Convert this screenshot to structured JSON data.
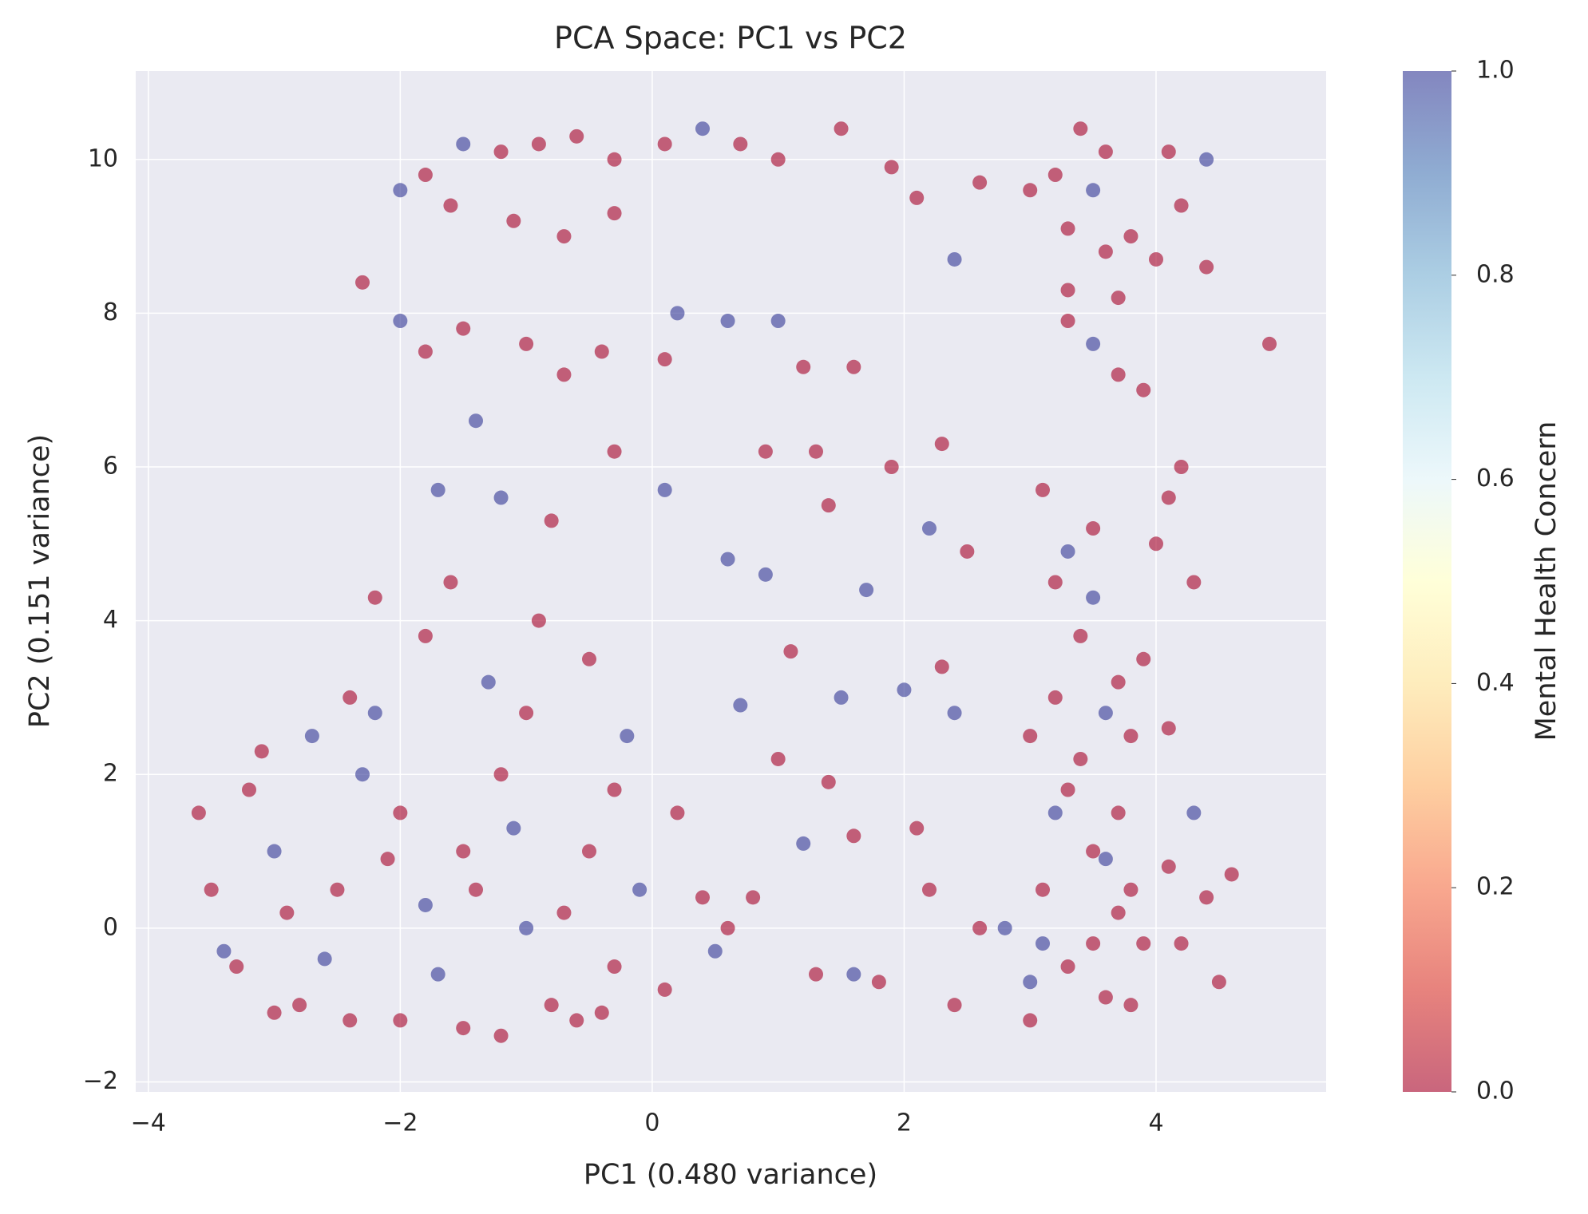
{
  "chart_data": {
    "type": "scatter",
    "title": "PCA Space: PC1 vs PC2",
    "x_label": "PC1 (0.480 variance)",
    "y_label": "PC2 (0.151 variance)",
    "colorbar_label": "Mental Health Concern",
    "xlim": [
      -4.1,
      5.35
    ],
    "ylim": [
      -2.13,
      11.15
    ],
    "xticks": [
      {
        "value": -4,
        "label": "−4"
      },
      {
        "value": -2,
        "label": "−2"
      },
      0,
      2,
      4
    ],
    "yticks": [
      {
        "value": -2,
        "label": "−2"
      },
      0,
      2,
      4,
      6,
      8,
      10
    ],
    "clim": [
      0,
      1
    ],
    "cticks": [
      {
        "value": 0,
        "label": "0.0"
      },
      0.2,
      0.4,
      0.6,
      0.8,
      {
        "value": 1,
        "label": "1.0"
      }
    ],
    "colormap": [
      "#a50026",
      "#d73027",
      "#f46d43",
      "#fdae61",
      "#fee090",
      "#ffffbf",
      "#e0f3f8",
      "#abd9e9",
      "#74add1",
      "#4575b4",
      "#313695"
    ],
    "alpha": 0.6,
    "grid": true,
    "x": [
      -3.6,
      -3.5,
      -3.3,
      -3.0,
      -2.8,
      -2.5,
      -2.3,
      -2.0,
      -2.0,
      -1.8,
      -1.5,
      -1.5,
      -1.2,
      -1.0,
      -0.8,
      -0.5,
      -0.3,
      -0.1,
      0.1,
      -2.7,
      -3.1,
      -2.4,
      -1.8,
      -1.3,
      -0.9,
      -0.5,
      -2.2,
      -1.6,
      -0.2,
      0.2,
      0.4,
      0.5,
      -3.4,
      -2.9,
      -2.6,
      -2.1,
      -1.7,
      -1.4,
      -1.1,
      -0.7,
      -3.2,
      -2.2,
      -1.0,
      -0.4,
      -3.0,
      -2.4,
      -1.2,
      -0.6,
      0.6,
      -0.3,
      -2.0,
      -1.8,
      -1.5,
      -1.2,
      -0.9,
      -0.6,
      -0.3,
      0.1,
      0.4,
      0.7,
      1.0,
      -1.6,
      -1.1,
      -0.7,
      -0.3,
      -2.0,
      -1.8,
      -1.5,
      -1.0,
      -0.7,
      -0.4,
      0.2,
      0.6,
      1.0,
      -1.4,
      -0.3,
      -2.3,
      0.1,
      1.2,
      1.6,
      2.4,
      1.5,
      1.9,
      2.1,
      2.6,
      3.0,
      -1.7,
      -1.2,
      0.1,
      -0.8,
      0.6,
      0.9,
      1.1,
      1.5,
      0.7,
      1.0,
      1.4,
      1.2,
      1.6,
      0.8,
      1.3,
      1.6,
      1.8,
      2.1,
      2.3,
      2.4,
      2.0,
      2.2,
      2.5,
      1.7,
      1.4,
      0.9,
      1.3,
      1.9,
      2.3,
      2.6,
      2.4,
      2.8,
      3.0,
      2.2,
      3.0,
      3.1,
      3.2,
      3.3,
      3.4,
      3.5,
      3.6,
      3.7,
      3.8,
      3.9,
      3.2,
      3.4,
      3.5,
      3.7,
      3.8,
      3.3,
      3.1,
      3.5,
      3.6,
      3.3,
      3.7,
      3.1,
      3.8,
      3.5,
      3.2,
      3.9,
      3.0,
      3.6,
      3.2,
      3.3,
      3.4,
      3.5,
      3.6,
      3.7,
      3.3,
      3.5,
      3.7,
      3.9,
      3.6,
      3.8,
      3.3,
      4.1,
      4.4,
      4.2,
      4.4,
      4.0,
      4.2,
      4.1,
      4.3,
      4.1,
      4.3,
      4.1,
      4.4,
      4.5,
      4.6,
      4.9,
      4.2,
      4.0
    ],
    "y": [
      1.5,
      0.5,
      -0.5,
      1.0,
      -1.0,
      0.5,
      2.0,
      1.5,
      -1.2,
      0.3,
      1.0,
      -1.3,
      2.0,
      0.0,
      -1.0,
      1.0,
      -0.5,
      0.5,
      -0.8,
      2.5,
      2.3,
      3.0,
      3.8,
      3.2,
      4.0,
      3.5,
      4.3,
      4.5,
      2.5,
      1.5,
      0.4,
      -0.3,
      -0.3,
      0.2,
      -0.4,
      0.9,
      -0.6,
      0.5,
      1.3,
      0.2,
      1.8,
      2.8,
      2.8,
      -1.1,
      -1.1,
      -1.2,
      -1.4,
      -1.2,
      0.0,
      1.8,
      9.6,
      9.8,
      10.2,
      10.1,
      10.2,
      10.3,
      10.0,
      10.2,
      10.4,
      10.2,
      10.0,
      9.4,
      9.2,
      9.0,
      9.3,
      7.9,
      7.5,
      7.8,
      7.6,
      7.2,
      7.5,
      8.0,
      7.9,
      7.9,
      6.6,
      6.2,
      8.4,
      7.4,
      7.3,
      7.3,
      8.7,
      10.4,
      9.9,
      9.5,
      9.7,
      9.6,
      5.7,
      5.6,
      5.7,
      5.3,
      4.8,
      4.6,
      3.6,
      3.0,
      2.9,
      2.2,
      1.9,
      1.1,
      1.2,
      0.4,
      -0.6,
      -0.6,
      -0.7,
      1.3,
      3.4,
      2.8,
      3.1,
      5.2,
      4.9,
      4.4,
      5.5,
      6.2,
      6.2,
      6.0,
      6.3,
      0.0,
      -1.0,
      0.0,
      -0.7,
      0.5,
      -1.2,
      0.5,
      1.5,
      -0.5,
      2.2,
      1.0,
      -0.9,
      0.2,
      -1.0,
      -0.2,
      3.0,
      3.8,
      4.3,
      3.2,
      2.5,
      4.9,
      5.7,
      5.2,
      0.9,
      1.8,
      1.5,
      -0.2,
      0.5,
      -0.2,
      4.5,
      3.5,
      2.5,
      2.8,
      9.8,
      9.1,
      10.4,
      9.6,
      8.8,
      8.2,
      8.3,
      7.6,
      7.2,
      7.0,
      10.1,
      9.0,
      7.9,
      10.1,
      10.0,
      9.4,
      8.6,
      8.7,
      6.0,
      5.6,
      4.5,
      2.6,
      1.5,
      0.8,
      0.4,
      -0.7,
      0.7,
      7.6,
      -0.2,
      5.0
    ],
    "c": [
      0,
      0,
      0,
      1,
      0,
      0,
      1,
      0,
      0,
      1,
      0,
      0,
      0,
      1,
      0,
      0,
      0,
      1,
      0,
      1,
      0,
      0,
      0,
      1,
      0,
      0,
      0,
      0,
      1,
      0,
      0,
      1,
      1,
      0,
      1,
      0,
      1,
      0,
      1,
      0,
      0,
      1,
      0,
      0,
      0,
      0,
      0,
      0,
      0,
      0,
      1,
      0,
      1,
      0,
      0,
      0,
      0,
      0,
      1,
      0,
      0,
      0,
      0,
      0,
      0,
      1,
      0,
      0,
      0,
      0,
      0,
      1,
      1,
      1,
      1,
      0,
      0,
      0,
      0,
      0,
      1,
      0,
      0,
      0,
      0,
      0,
      1,
      1,
      1,
      0,
      1,
      1,
      0,
      1,
      1,
      0,
      0,
      1,
      0,
      0,
      0,
      1,
      0,
      0,
      0,
      1,
      1,
      1,
      0,
      1,
      0,
      0,
      0,
      0,
      0,
      0,
      0,
      1,
      1,
      0,
      0,
      0,
      1,
      0,
      0,
      0,
      0,
      0,
      0,
      0,
      0,
      0,
      1,
      0,
      0,
      1,
      0,
      0,
      1,
      0,
      0,
      1,
      0,
      0,
      0,
      0,
      0,
      1,
      0,
      0,
      0,
      1,
      0,
      0,
      0,
      1,
      0,
      0,
      0,
      0,
      0,
      0,
      1,
      0,
      0,
      0,
      0,
      0,
      0,
      0,
      1,
      0,
      0,
      0,
      0,
      0,
      0,
      0
    ]
  }
}
